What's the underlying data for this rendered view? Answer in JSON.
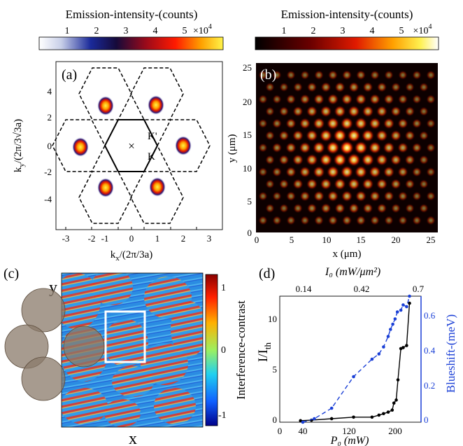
{
  "panel_a": {
    "colorbar_title": "Emission-intensity-(counts)",
    "colorbar_ticks": [
      "1",
      "2",
      "3",
      "4",
      "5"
    ],
    "colorbar_multiplier": "×10",
    "colorbar_exponent": "4",
    "label": "(a)",
    "xlabel_main": "k",
    "xlabel_sub": "x",
    "xlabel_rest": "/(2π/3a)",
    "ylabel_main": "k",
    "ylabel_sub": "y",
    "ylabel_rest": "/(2π/3√3a)",
    "xticks": [
      "-3",
      "-2",
      "-1",
      "0",
      "1",
      "2",
      "3"
    ],
    "yticks": [
      "4",
      "2",
      "0",
      "-2",
      "-4"
    ],
    "k_prime_label": "K'",
    "k_label": "K",
    "center_label": "×"
  },
  "panel_b": {
    "colorbar_title": "Emission-intensity-(counts)",
    "colorbar_ticks": [
      "1",
      "2",
      "3",
      "4",
      "5"
    ],
    "colorbar_multiplier": "×10",
    "colorbar_exponent": "4",
    "label": "(b)",
    "xlabel": "x (μm)",
    "ylabel": "y (μm)",
    "xticks": [
      "0",
      "5",
      "10",
      "15",
      "20",
      "25"
    ],
    "yticks": [
      "25",
      "20",
      "15",
      "10",
      "5",
      "0"
    ]
  },
  "panel_c": {
    "label": "(c)",
    "axis_y": "y",
    "axis_x": "x",
    "colorbar_label": "Interference-contrast",
    "colorbar_ticks": [
      "1",
      "0",
      "-1"
    ]
  },
  "panel_d": {
    "label": "(d)",
    "top_axis_label": "I₀ (mW/μm²)",
    "top_ticks": [
      "0.14",
      "0.42",
      "0.7"
    ],
    "bottom_axis_label": "P₀ (mW)",
    "bottom_ticks": [
      "0",
      "40",
      "120",
      "200"
    ],
    "left_label_main": "I/I",
    "left_label_sub": "th",
    "left_ticks": [
      "0",
      "5",
      "10"
    ],
    "right_label": "Blueshift-(meV)",
    "right_ticks": [
      "0",
      "0.2",
      "0.4",
      "0.6"
    ],
    "colors": {
      "intensity": "#000000",
      "blueshift": "#1a3fd6"
    }
  },
  "chart_data": [
    {
      "type": "line",
      "panel": "(d)",
      "xlabel": "P₀ (mW)",
      "xlim": [
        0,
        245
      ],
      "x_top_label": "I₀ (mW/μm²)",
      "series": [
        {
          "axis": "left",
          "ylim": [
            0,
            12.5
          ],
          "x": [
            36,
            55,
            90,
            128,
            160,
            172,
            180,
            188,
            195,
            198,
            202,
            205,
            210,
            214,
            220,
            225
          ],
          "values": [
            0.15,
            0.2,
            0.35,
            0.5,
            0.5,
            0.7,
            0.85,
            1.0,
            1.2,
            1.9,
            2.2,
            4.2,
            7.3,
            7.4,
            7.6,
            11.8
          ]
        },
        {
          "axis": "right",
          "ylim": [
            0,
            0.72
          ],
          "x": [
            40,
            60,
            90,
            128,
            160,
            172,
            180,
            188,
            192,
            196,
            200,
            204,
            210,
            214,
            220,
            225
          ],
          "values": [
            0.0,
            0.02,
            0.08,
            0.26,
            0.36,
            0.39,
            0.43,
            0.49,
            0.53,
            0.56,
            0.59,
            0.63,
            0.64,
            0.67,
            0.66,
            0.72
          ]
        }
      ]
    }
  ]
}
